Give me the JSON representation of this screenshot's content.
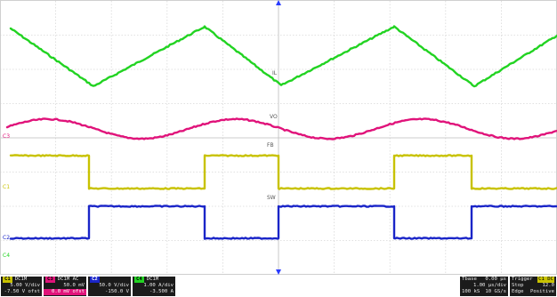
{
  "colors": {
    "ch1": "#c8c200",
    "ch2": "#1a25c8",
    "ch3": "#e0137a",
    "ch4": "#22d322",
    "grid": "#d8d8d8",
    "marker": "#2a3cff"
  },
  "waveform_labels": {
    "il": "IL",
    "vo": "VO",
    "fb": "FB",
    "sw": "SW"
  },
  "ground_markers": {
    "c1": "C1",
    "c2": "C2",
    "c3": "C3",
    "c4": "C4"
  },
  "channels": [
    {
      "tag": "C1",
      "title": "DC1M",
      "row1": "5.00 V/div",
      "row2": "-7.50 V ofst"
    },
    {
      "tag": "C3",
      "title": "DC1M AC",
      "row1": "50.0 mV",
      "row2": "0.0 mV ofst"
    },
    {
      "tag": "C2",
      "title": "",
      "row1": "50.0 V/div",
      "row2": "-150.0 V"
    },
    {
      "tag": "C4",
      "title": "DC1M",
      "row1": "1.00 A/div",
      "row2": "-3.500 A"
    }
  ],
  "timebase": {
    "label": "Tbase",
    "offset": "0.00 µs",
    "scale": "1.00 µs/div",
    "samples": "100 kS",
    "rate": "10 GS/s"
  },
  "trigger": {
    "label": "Trigger",
    "source": "C1 DC",
    "mode": "Stop",
    "level": "12.0",
    "type": "Edge",
    "slope": "Positive"
  }
}
